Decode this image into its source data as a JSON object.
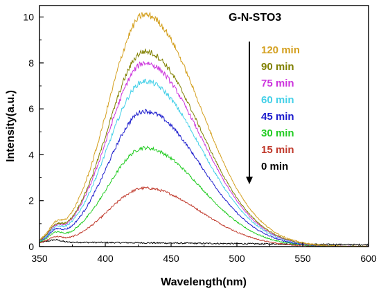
{
  "chart_data": {
    "type": "line",
    "title": "G-N-STO3",
    "xlabel": "Wavelength(nm)",
    "ylabel": "Intensity(a.u.)",
    "xlim": [
      350,
      600
    ],
    "ylim": [
      0,
      10.5
    ],
    "xticks": [
      350,
      400,
      450,
      500,
      550,
      600
    ],
    "yticks": [
      0,
      2,
      4,
      6,
      8,
      10
    ],
    "grid": false,
    "legend_position": "top-right",
    "legend_arrow": "down",
    "series": [
      {
        "name": "120 min",
        "color": "#d4a020",
        "peak_x": 430,
        "peak": 10.1,
        "shoulder": 0.45
      },
      {
        "name": "90 min",
        "color": "#808000",
        "peak_x": 430,
        "peak": 8.5,
        "shoulder": 0.42
      },
      {
        "name": "75 min",
        "color": "#cc33dd",
        "peak_x": 430,
        "peak": 8.0,
        "shoulder": 0.4
      },
      {
        "name": "60 min",
        "color": "#44d0e8",
        "peak_x": 430,
        "peak": 7.2,
        "shoulder": 0.38
      },
      {
        "name": "45 min",
        "color": "#1a1acc",
        "peak_x": 430,
        "peak": 5.9,
        "shoulder": 0.35
      },
      {
        "name": "30 min",
        "color": "#22cc22",
        "peak_x": 430,
        "peak": 4.3,
        "shoulder": 0.3
      },
      {
        "name": "15 min",
        "color": "#c0392b",
        "peak_x": 430,
        "peak": 2.55,
        "shoulder": 0.2
      },
      {
        "name": "0 min",
        "color": "#000000",
        "peak_x": 360,
        "peak": 0.25,
        "shoulder": 0.0
      }
    ]
  }
}
